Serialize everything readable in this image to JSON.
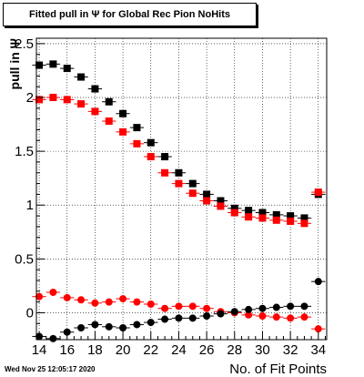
{
  "title": "Fitted pull in  Ψ  for Global Rec Pion NoHits",
  "timestamp": "Wed Nov 25 12:05:17 2020",
  "colors": {
    "black_series": "#000000",
    "red_series": "#ff0000",
    "frame": "#000000",
    "grid": "#000000"
  },
  "chart_data": {
    "type": "scatter",
    "title": "Fitted pull in  Ψ  for Global Rec Pion NoHits",
    "xlabel": "No. of Fit Points",
    "ylabel": "pull in  Ψ",
    "xlim": [
      13.8,
      34.6
    ],
    "ylim": [
      -0.25,
      2.55
    ],
    "grid": true,
    "x_ticks": [
      14,
      16,
      18,
      20,
      22,
      24,
      26,
      28,
      30,
      32,
      34
    ],
    "y_ticks": [
      0,
      0.5,
      1,
      1.5,
      2,
      2.5
    ],
    "x_tick_labels": [
      "14",
      "16",
      "18",
      "20",
      "22",
      "24",
      "26",
      "28",
      "30",
      "32",
      "34"
    ],
    "y_tick_labels": [
      "0",
      "0.5",
      "1",
      "1.5",
      "2",
      "2.5"
    ],
    "x": [
      14,
      15,
      16,
      17,
      18,
      19,
      20,
      21,
      22,
      23,
      24,
      25,
      26,
      27,
      28,
      29,
      30,
      31,
      32,
      33,
      34
    ],
    "series": [
      {
        "marker": "square",
        "color": "#000000",
        "values": [
          2.3,
          2.31,
          2.27,
          2.19,
          2.08,
          1.96,
          1.85,
          1.72,
          1.58,
          1.45,
          1.3,
          1.2,
          1.1,
          1.04,
          0.97,
          0.95,
          0.93,
          0.91,
          0.9,
          0.88,
          1.1
        ]
      },
      {
        "marker": "square",
        "color": "#ff0000",
        "values": [
          1.98,
          2.0,
          1.98,
          1.94,
          1.87,
          1.78,
          1.68,
          1.57,
          1.45,
          1.3,
          1.2,
          1.11,
          1.04,
          0.99,
          0.93,
          0.89,
          0.88,
          0.86,
          0.85,
          0.83,
          1.12
        ]
      },
      {
        "marker": "circle",
        "color": "#ff0000",
        "values": [
          0.15,
          0.19,
          0.14,
          0.12,
          0.09,
          0.1,
          0.13,
          0.1,
          0.08,
          0.04,
          0.06,
          0.06,
          0.04,
          0.01,
          0.0,
          -0.02,
          -0.03,
          -0.04,
          -0.05,
          -0.04,
          -0.15
        ]
      },
      {
        "marker": "circle",
        "color": "#000000",
        "values": [
          -0.22,
          -0.24,
          -0.18,
          -0.14,
          -0.11,
          -0.13,
          -0.14,
          -0.11,
          -0.09,
          -0.06,
          -0.05,
          -0.05,
          -0.03,
          -0.01,
          0.01,
          0.03,
          0.04,
          0.05,
          0.06,
          0.06,
          0.29
        ]
      }
    ]
  }
}
